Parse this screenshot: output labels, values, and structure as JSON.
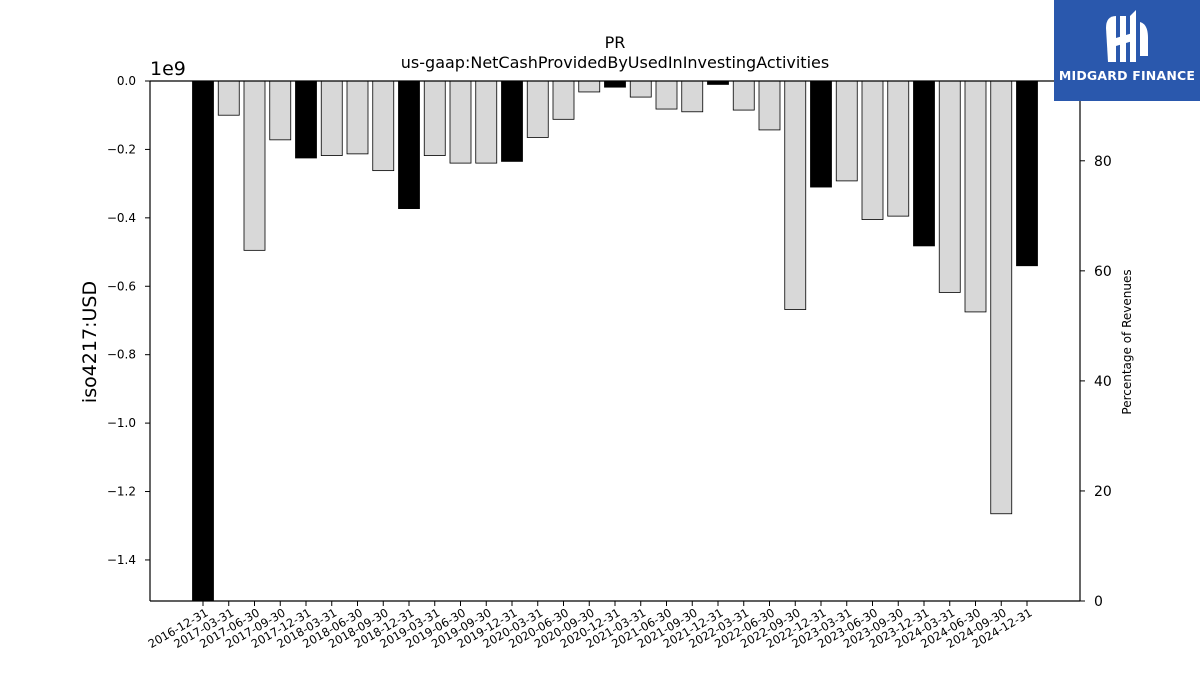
{
  "chart_data": {
    "type": "bar",
    "title": "PR",
    "subtitle": "us-gaap:NetCashProvidedByUsedInInvestingActivities",
    "ylabel": "iso4217:USD",
    "y_offset_label": "1e9",
    "y2label": "Percentage of Revenues",
    "ylim": [
      -1.52,
      0.0
    ],
    "y2lim": [
      0,
      94.5
    ],
    "yticks": [
      "0.0",
      "−0.2",
      "−0.4",
      "−0.6",
      "−0.8",
      "−1.0",
      "−1.2",
      "−1.4"
    ],
    "y2ticks": [
      "0",
      "20",
      "40",
      "60",
      "80"
    ],
    "grid": false,
    "categories": [
      "2016-12-31",
      "2017-03-31",
      "2017-06-30",
      "2017-09-30",
      "2017-12-31",
      "2018-03-31",
      "2018-06-30",
      "2018-09-30",
      "2018-12-31",
      "2019-03-31",
      "2019-06-30",
      "2019-09-30",
      "2019-12-31",
      "2020-03-31",
      "2020-06-30",
      "2020-09-30",
      "2020-12-31",
      "2021-03-31",
      "2021-06-30",
      "2021-09-30",
      "2021-12-31",
      "2022-03-31",
      "2022-06-30",
      "2022-09-30",
      "2022-12-31",
      "2023-03-31",
      "2023-06-30",
      "2023-09-30",
      "2023-12-31",
      "2024-03-31",
      "2024-06-30",
      "2024-09-30",
      "2024-12-31"
    ],
    "values": [
      -1.52,
      -0.1,
      -0.495,
      -0.172,
      -0.225,
      -0.218,
      -0.213,
      -0.262,
      -0.373,
      -0.218,
      -0.24,
      -0.24,
      -0.235,
      -0.165,
      -0.112,
      -0.032,
      -0.018,
      -0.047,
      -0.082,
      -0.09,
      -0.01,
      -0.085,
      -0.143,
      -0.668,
      -0.31,
      -0.292,
      -0.405,
      -0.395,
      -0.482,
      -0.618,
      -0.675,
      -1.265,
      -0.54
    ],
    "annual": [
      true,
      false,
      false,
      false,
      true,
      false,
      false,
      false,
      true,
      false,
      false,
      false,
      true,
      false,
      false,
      false,
      true,
      false,
      false,
      false,
      true,
      false,
      false,
      false,
      true,
      false,
      false,
      false,
      true,
      false,
      false,
      false,
      true
    ],
    "colors": {
      "annual": "#000000",
      "quarter": "#d8d8d8",
      "edge": "#000000",
      "logo_bg": "#2a58ad"
    }
  },
  "logo": {
    "text": "MIDGARD FINANCE",
    "icon": "midgard-logo-icon"
  }
}
